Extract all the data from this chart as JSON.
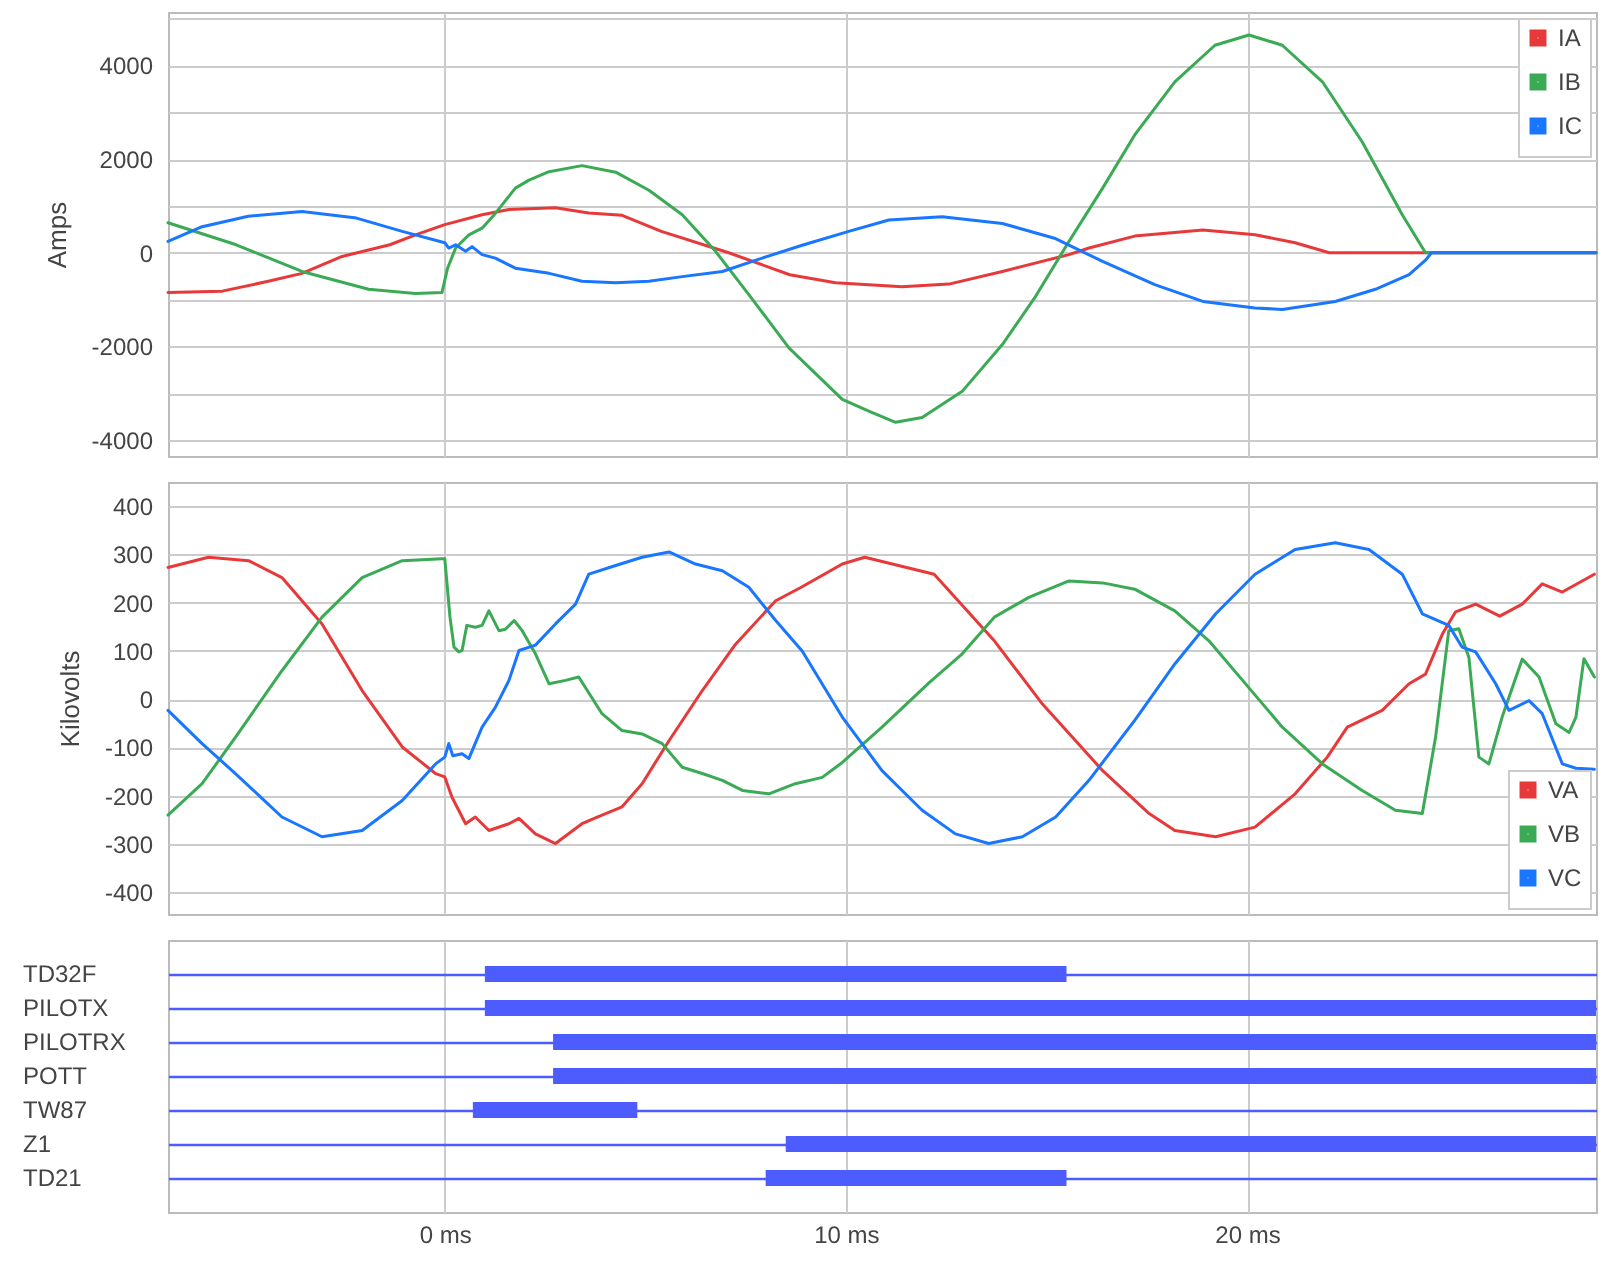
{
  "chart_data": [
    {
      "type": "line",
      "ylabel": "Amps",
      "xlim": [
        -6.9,
        28.7
      ],
      "ylim": [
        -4340,
        5140
      ],
      "xticks": [
        {
          "value": 0,
          "label": null
        },
        {
          "value": 10,
          "label": null
        },
        {
          "value": 20,
          "label": null
        }
      ],
      "yticks": [
        -4000,
        {
          "value": -3000,
          "label": null
        },
        -2000,
        {
          "value": -1000,
          "label": null
        },
        0,
        {
          "value": 1000,
          "label": null
        },
        2000,
        {
          "value": 3000,
          "label": null
        },
        4000,
        {
          "value": 5000,
          "label": null
        }
      ],
      "tick_labels": "y",
      "grid": true,
      "legend": "top right",
      "marker": "none",
      "line_style": "solid",
      "series": [
        {
          "name": "IA",
          "color": "#e8393a",
          "x": [
            -6.9,
            -5.55,
            -4.4,
            -3.56,
            -2.56,
            -1.37,
            -0.73,
            0,
            0.93,
            1.6,
            2.76,
            3.59,
            4.42,
            5.4,
            7.08,
            8.6,
            9.74,
            11.4,
            12.57,
            13.9,
            15.56,
            16.06,
            17.2,
            18.9,
            20.2,
            21.2,
            22.05,
            28.7
          ],
          "values": [
            -850,
            -820,
            -610,
            -440,
            -80,
            170,
            380,
            600,
            810,
            924,
            960,
            850,
            800,
            455,
            0,
            -470,
            -640,
            -725,
            -670,
            -400,
            -40,
            100,
            355,
            483,
            385,
            213,
            0,
            0
          ]
        },
        {
          "name": "IB",
          "color": "#3aaa55",
          "x": [
            -6.9,
            -5.2,
            -3.56,
            -1.9,
            -0.73,
            -0.07,
            0.07,
            0.27,
            0.6,
            0.93,
            1.26,
            1.76,
            2.1,
            2.6,
            3.42,
            4.26,
            5.09,
            5.92,
            6.75,
            7.58,
            8.58,
            9.91,
            10.57,
            11.24,
            11.9,
            12.9,
            13.9,
            14.7,
            15.56,
            16.4,
            17.2,
            18.2,
            19.2,
            20.05,
            20.88,
            21.88,
            22.87,
            23.87,
            24.45,
            28.7
          ],
          "values": [
            640,
            170,
            -400,
            -780,
            -870,
            -850,
            -330,
            100,
            380,
            525,
            840,
            1380,
            1550,
            1730,
            1860,
            1720,
            1335,
            810,
            30,
            -895,
            -2030,
            -3130,
            -3380,
            -3620,
            -3520,
            -2960,
            -1960,
            -970,
            240,
            1380,
            2515,
            3650,
            4430,
            4650,
            4430,
            3650,
            2370,
            810,
            0,
            0
          ]
        },
        {
          "name": "IC",
          "color": "#1976ff",
          "x": [
            -6.9,
            -6.05,
            -4.9,
            -3.56,
            -2.2,
            -1.06,
            0,
            0.1,
            0.27,
            0.52,
            0.68,
            0.93,
            1.26,
            1.76,
            2.6,
            3.42,
            4.26,
            5.09,
            5.92,
            6.92,
            7.91,
            8.91,
            10.07,
            11.07,
            12.4,
            13.9,
            15.2,
            16.4,
            17.7,
            18.9,
            20.2,
            20.88,
            22.2,
            23.2,
            24.04,
            24.45,
            24.6,
            28.7
          ],
          "values": [
            240,
            555,
            780,
            880,
            740,
            455,
            213,
            100,
            170,
            30,
            130,
            -40,
            -115,
            -330,
            -440,
            -610,
            -640,
            -610,
            -510,
            -400,
            -115,
            160,
            455,
            700,
            770,
            625,
            310,
            -185,
            -680,
            -1040,
            -1180,
            -1210,
            -1040,
            -780,
            -470,
            -160,
            0,
            0
          ]
        }
      ]
    },
    {
      "type": "line",
      "ylabel": "Kilovolts",
      "xlim": [
        -6.9,
        28.7
      ],
      "ylim": [
        -445,
        450
      ],
      "xticks": [
        {
          "value": 0,
          "label": null
        },
        {
          "value": 10,
          "label": null
        },
        {
          "value": 20,
          "label": null
        }
      ],
      "yticks": [
        -400,
        -300,
        -200,
        -100,
        0,
        100,
        200,
        300,
        400
      ],
      "tick_labels": "y",
      "grid": true,
      "legend": "bottom right",
      "marker": "none",
      "line_style": "solid",
      "series": [
        {
          "name": "VA",
          "color": "#e8393a",
          "x": [
            -6.9,
            -5.89,
            -4.89,
            -4.06,
            -3.06,
            -2.06,
            -1.06,
            -0.23,
            0,
            0.18,
            0.52,
            0.76,
            1.1,
            1.6,
            1.85,
            2.26,
            2.76,
            3.42,
            3.92,
            4.42,
            4.92,
            5.59,
            6.42,
            7.25,
            8.25,
            8.91,
            9.91,
            10.47,
            12.2,
            13.7,
            14.9,
            16.4,
            17.56,
            18.2,
            19.22,
            20.2,
            21.2,
            22.0,
            22.5,
            23.37,
            24.04,
            24.45,
            24.87,
            25.2,
            25.7,
            26.3,
            26.86,
            27.36,
            27.86,
            28.66
          ],
          "values": [
            273,
            294,
            287,
            252,
            156,
            18,
            -99,
            -154,
            -161,
            -203,
            -258,
            -244,
            -272,
            -258,
            -247,
            -279,
            -299,
            -258,
            -240,
            -223,
            -175,
            -86,
            18,
            114,
            204,
            233,
            280,
            294,
            259,
            121,
            -10,
            -148,
            -237,
            -272,
            -285,
            -265,
            -196,
            -120,
            -58,
            -23,
            32,
            52,
            135,
            181,
            197,
            172,
            197,
            239,
            222,
            259
          ]
        },
        {
          "name": "VB",
          "color": "#3aaa55",
          "x": [
            -6.9,
            -6.05,
            -5.22,
            -4.06,
            -3.06,
            -2.06,
            -1.06,
            -0.07,
            0,
            0.13,
            0.23,
            0.35,
            0.43,
            0.55,
            0.76,
            0.93,
            1.1,
            1.35,
            1.51,
            1.73,
            1.93,
            2.26,
            2.6,
            3.01,
            3.34,
            3.92,
            4.42,
            4.92,
            5.42,
            5.92,
            6.42,
            6.92,
            7.42,
            8.08,
            8.74,
            9.41,
            9.91,
            10.9,
            12.07,
            12.9,
            13.7,
            14.56,
            15.56,
            16.4,
            17.2,
            18.2,
            19.05,
            19.89,
            20.88,
            21.88,
            22.87,
            23.7,
            24.37,
            24.7,
            25.03,
            25.28,
            25.53,
            25.78,
            26.03,
            26.36,
            26.86,
            27.28,
            27.7,
            28.03,
            28.2,
            28.4,
            28.66
          ],
          "values": [
            -240,
            -175,
            -79,
            59,
            170,
            252,
            287,
            291,
            291,
            170,
            108,
            98,
            101,
            153,
            149,
            153,
            183,
            142,
            145,
            163,
            142,
            94,
            32,
            39,
            46,
            -30,
            -65,
            -72,
            -92,
            -141,
            -154,
            -168,
            -189,
            -196,
            -175,
            -162,
            -131,
            -58,
            34,
            94,
            170,
            211,
            245,
            241,
            228,
            183,
            121,
            39,
            -58,
            -134,
            -189,
            -230,
            -237,
            -79,
            142,
            146,
            87,
            -120,
            -134,
            -37,
            83,
            46,
            -51,
            -69,
            -37,
            84,
            46
          ]
        },
        {
          "name": "VC",
          "color": "#1976ff",
          "x": [
            -6.9,
            -6.05,
            -5.22,
            -4.06,
            -3.06,
            -2.06,
            -1.06,
            -0.23,
            0,
            0.1,
            0.2,
            0.43,
            0.6,
            0.93,
            1.26,
            1.6,
            1.85,
            2.26,
            2.76,
            3.26,
            3.59,
            4.26,
            4.92,
            5.59,
            6.25,
            6.92,
            7.58,
            8.25,
            8.91,
            9.91,
            10.9,
            11.9,
            12.73,
            13.56,
            14.4,
            15.23,
            16.06,
            17.2,
            18.2,
            19.22,
            20.2,
            21.2,
            22.2,
            23.04,
            23.87,
            24.37,
            25.03,
            25.36,
            25.7,
            26.2,
            26.53,
            27.03,
            27.36,
            27.86,
            28.2,
            28.66
          ],
          "values": [
            -23,
            -92,
            -154,
            -244,
            -285,
            -272,
            -210,
            -134,
            -120,
            -92,
            -117,
            -113,
            -123,
            -58,
            -17,
            39,
            101,
            112,
            156,
            197,
            259,
            277,
            294,
            305,
            280,
            266,
            232,
            163,
            100,
            -37,
            -148,
            -230,
            -279,
            -299,
            -285,
            -244,
            -168,
            -44,
            73,
            177,
            259,
            310,
            324,
            310,
            259,
            177,
            153,
            108,
            98,
            32,
            -23,
            -3,
            -30,
            -134,
            -143,
            -145
          ]
        }
      ]
    },
    {
      "type": "bar",
      "orientation": "horizontal",
      "xlim": [
        -6.9,
        28.7
      ],
      "xticks": [
        {
          "value": 0,
          "label": "0 ms"
        },
        {
          "value": 10,
          "label": "10 ms"
        },
        {
          "value": 20,
          "label": "20 ms"
        }
      ],
      "grid": true,
      "color": "#4c5cff",
      "categories": [
        "TD32F",
        "PILOTX",
        "PILOTRX",
        "POTT",
        "TW87",
        "Z1",
        "TD21"
      ],
      "base": [
        1.0,
        1.0,
        2.7,
        2.7,
        0.7,
        8.5,
        8.0
      ],
      "values": [
        14.5,
        27.7,
        26.0,
        26.0,
        4.1,
        20.2,
        7.5
      ]
    }
  ]
}
